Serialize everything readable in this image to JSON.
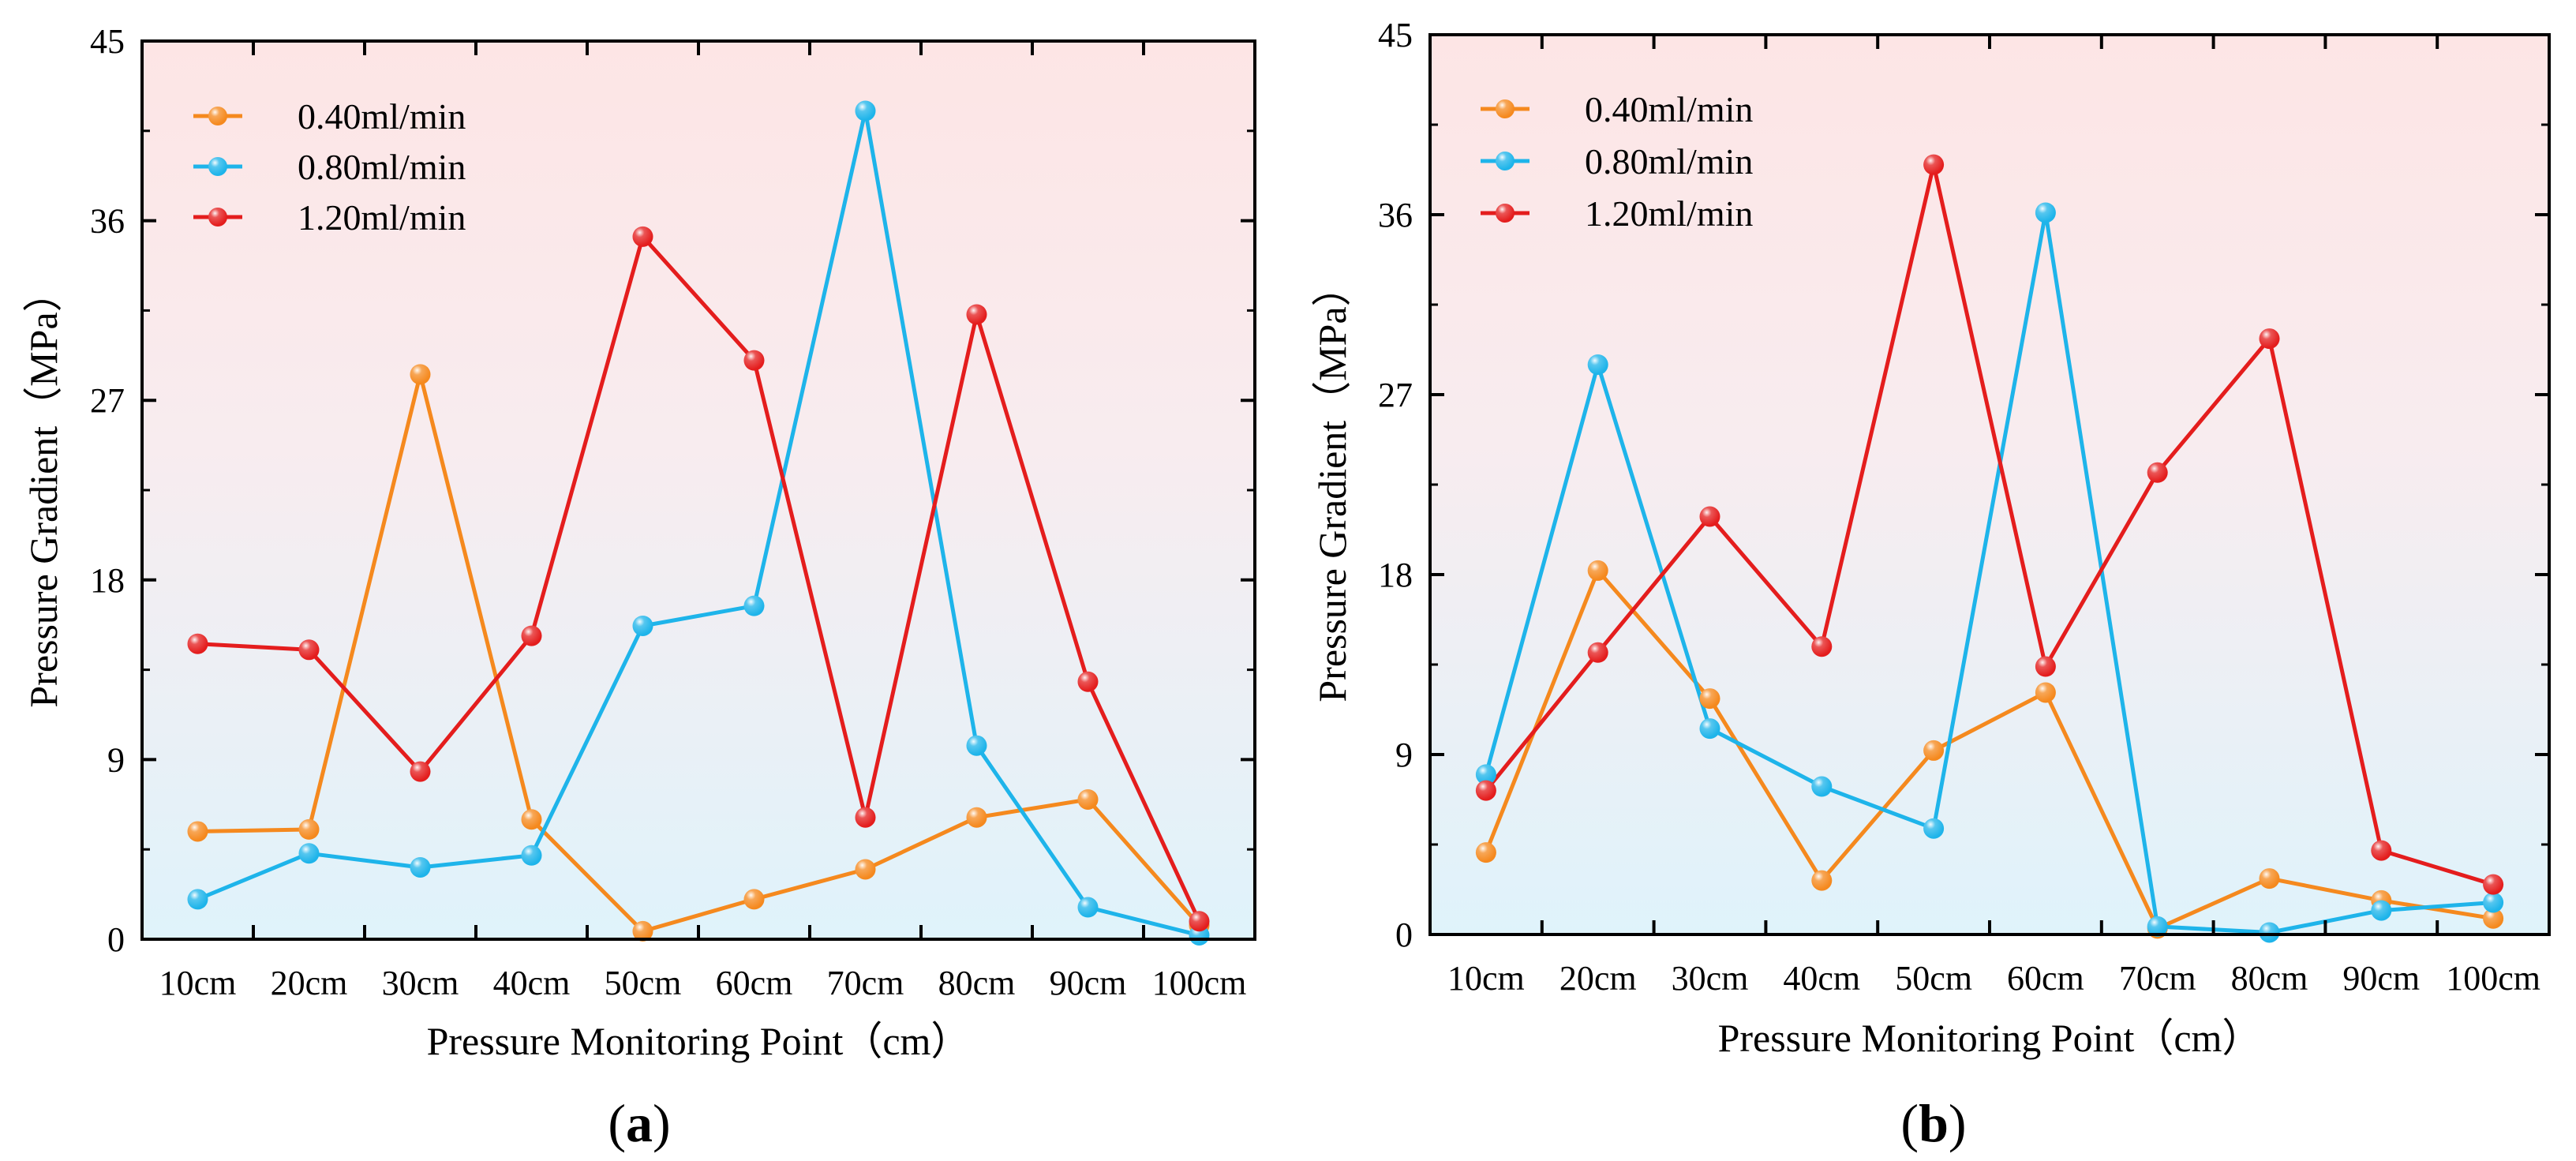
{
  "chart_data": [
    {
      "type": "line",
      "panel_label": "(a)",
      "panel_letter": "a",
      "xlabel": "Pressure Monitoring Point（cm）",
      "ylabel": "Pressure Gradient（MPa）",
      "ylim": [
        0,
        45
      ],
      "yticks": [
        "0",
        "9",
        "18",
        "27",
        "36",
        "45"
      ],
      "categories": [
        "10cm",
        "20cm",
        "30cm",
        "40cm",
        "50cm",
        "60cm",
        "70cm",
        "80cm",
        "90cm",
        "100cm"
      ],
      "legend_position": "top-left",
      "series": [
        {
          "name": "0.40ml/min",
          "color": "#f5891e",
          "values": [
            5.4,
            5.5,
            28.3,
            6.0,
            0.4,
            2.0,
            3.5,
            6.1,
            7.0,
            0.7
          ]
        },
        {
          "name": "0.80ml/min",
          "color": "#1eb4ea",
          "values": [
            2.0,
            4.3,
            3.6,
            4.2,
            15.7,
            16.7,
            41.5,
            9.7,
            1.6,
            0.2
          ]
        },
        {
          "name": "1.20ml/min",
          "color": "#e41d1d",
          "values": [
            14.8,
            14.5,
            8.4,
            15.2,
            35.2,
            29.0,
            6.1,
            31.3,
            12.9,
            0.9
          ]
        }
      ]
    },
    {
      "type": "line",
      "panel_label": "(b)",
      "panel_letter": "b",
      "xlabel": "Pressure Monitoring Point（cm）",
      "ylabel": "Pressure Gradient（MPa）",
      "ylim": [
        0,
        45
      ],
      "yticks": [
        "0",
        "9",
        "18",
        "27",
        "36",
        "45"
      ],
      "categories": [
        "10cm",
        "20cm",
        "30cm",
        "40cm",
        "50cm",
        "60cm",
        "70cm",
        "80cm",
        "90cm",
        "100cm"
      ],
      "legend_position": "top-left",
      "series": [
        {
          "name": "0.40ml/min",
          "color": "#f5891e",
          "values": [
            4.1,
            18.2,
            11.8,
            2.7,
            9.2,
            12.1,
            0.3,
            2.8,
            1.7,
            0.8
          ]
        },
        {
          "name": "0.80ml/min",
          "color": "#1eb4ea",
          "values": [
            8.0,
            28.5,
            10.3,
            7.4,
            5.3,
            36.1,
            0.4,
            0.1,
            1.2,
            1.6
          ]
        },
        {
          "name": "1.20ml/min",
          "color": "#e41d1d",
          "values": [
            7.2,
            14.1,
            20.9,
            14.4,
            38.5,
            13.4,
            23.1,
            29.8,
            4.2,
            2.5
          ]
        }
      ]
    }
  ]
}
